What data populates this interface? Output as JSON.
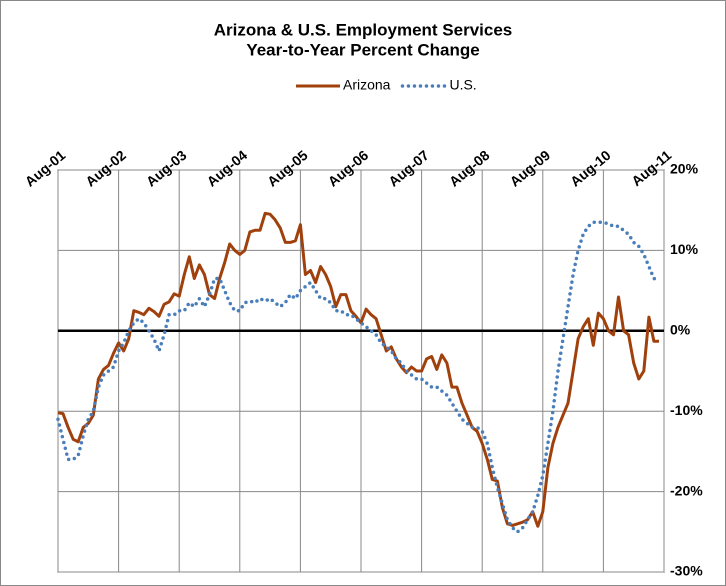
{
  "chart_data": {
    "type": "line",
    "title": "Arizona & U.S. Employment Services",
    "subtitle": "Year-to-Year Percent Change",
    "categories": [
      "Aug-01",
      null,
      null,
      null,
      null,
      null,
      null,
      null,
      null,
      null,
      null,
      null,
      "Aug-02",
      null,
      null,
      null,
      null,
      null,
      null,
      null,
      null,
      null,
      null,
      null,
      "Aug-03",
      null,
      null,
      null,
      null,
      null,
      null,
      null,
      null,
      null,
      null,
      null,
      "Aug-04",
      null,
      null,
      null,
      null,
      null,
      null,
      null,
      null,
      null,
      null,
      null,
      "Aug-05",
      null,
      null,
      null,
      null,
      null,
      null,
      null,
      null,
      null,
      null,
      null,
      "Aug-06",
      null,
      null,
      null,
      null,
      null,
      null,
      null,
      null,
      null,
      null,
      null,
      "Aug-07",
      null,
      null,
      null,
      null,
      null,
      null,
      null,
      null,
      null,
      null,
      null,
      "Aug-08",
      null,
      null,
      null,
      null,
      null,
      null,
      null,
      null,
      null,
      null,
      null,
      "Aug-09",
      null,
      null,
      null,
      null,
      null,
      null,
      null,
      null,
      null,
      null,
      null,
      "Aug-10",
      null,
      null,
      null,
      null,
      null,
      null,
      null,
      null,
      null,
      null,
      null,
      "Aug-11"
    ],
    "series": [
      {
        "name": "Arizona",
        "color": "#a0410d",
        "line_style": "solid",
        "values": [
          -10.2,
          -10.3,
          -12,
          -13.5,
          -13.8,
          -12,
          -11.5,
          -10.5,
          -6,
          -4.8,
          -4.3,
          -2.8,
          -1.5,
          -2.5,
          -1,
          2.5,
          2.3,
          2,
          2.8,
          2.4,
          1.8,
          3.3,
          3.6,
          4.6,
          4.3,
          7,
          9.2,
          6.5,
          8.2,
          7,
          4.5,
          4,
          6.5,
          8.5,
          10.8,
          10,
          9.5,
          10,
          12.3,
          12.5,
          12.5,
          14.6,
          14.5,
          13.8,
          12.8,
          11,
          11,
          11.2,
          13.2,
          7,
          7.5,
          6,
          8,
          7,
          5.5,
          3,
          4.5,
          4.5,
          2.5,
          1.8,
          1,
          2.7,
          2,
          1.5,
          -0.5,
          -2.5,
          -2,
          -3.5,
          -4.5,
          -5.2,
          -4.5,
          -5,
          -5,
          -3.5,
          -3.2,
          -4.8,
          -3,
          -4,
          -7,
          -7,
          -9,
          -10.5,
          -12,
          -12.5,
          -14,
          -16,
          -18.5,
          -18.7,
          -22,
          -24,
          -24.2,
          -24,
          -23.8,
          -23.5,
          -22.5,
          -24.3,
          -22.5,
          -17,
          -14,
          -12,
          -10.5,
          -9,
          -5,
          -1,
          0.5,
          1.5,
          -1.8,
          2.2,
          1.5,
          0,
          -0.5,
          4.2,
          0,
          -0.5,
          -4,
          -6,
          -5,
          1.7,
          -1.3,
          -1.3,
          null
        ]
      },
      {
        "name": "U.S.",
        "color": "#4a7ebb",
        "line_style": "dotted",
        "values": [
          -11,
          -13.5,
          -16,
          -16,
          -15.5,
          -13,
          -11,
          -10,
          -7,
          -5.5,
          -5,
          -4.5,
          -2.5,
          -1.5,
          0,
          1,
          1.5,
          1,
          0,
          -1,
          -2.5,
          -0.5,
          2,
          2,
          2.5,
          2.5,
          3.5,
          3,
          4,
          3,
          4.5,
          6.5,
          6.5,
          5,
          3.5,
          2.5,
          2.5,
          3.5,
          3.7,
          3.5,
          4,
          3.7,
          4,
          3.5,
          3,
          3.5,
          4.5,
          4,
          5,
          5.5,
          6,
          5,
          4,
          4,
          3.5,
          2.5,
          2.5,
          2,
          2,
          1.5,
          1,
          0.5,
          0,
          -0.5,
          -1.5,
          -2,
          -2.5,
          -3.5,
          -4,
          -5,
          -5.5,
          -6,
          -6,
          -6.5,
          -7,
          -7,
          -7.5,
          -8,
          -9,
          -10,
          -11,
          -11.5,
          -12,
          -12,
          -12.5,
          -14,
          -17,
          -19.5,
          -21.5,
          -23.5,
          -24.5,
          -25,
          -24.5,
          -23.5,
          -22.5,
          -20.5,
          -18,
          -14,
          -10,
          -5,
          -1,
          3,
          7,
          10,
          12,
          13,
          13.5,
          13.5,
          13.5,
          13.3,
          13,
          13,
          12.5,
          12,
          11,
          10.5,
          9.5,
          8,
          6.5,
          6.3,
          null
        ]
      }
    ],
    "ylim": [
      -30,
      20
    ],
    "yticks": [
      {
        "value": -30,
        "label": "-30%"
      },
      {
        "value": -20,
        "label": "-20%"
      },
      {
        "value": -10,
        "label": "-10%"
      },
      {
        "value": 0,
        "label": "0%"
      },
      {
        "value": 10,
        "label": "10%"
      },
      {
        "value": 20,
        "label": "20%"
      }
    ],
    "grid": true,
    "legend": "top"
  }
}
